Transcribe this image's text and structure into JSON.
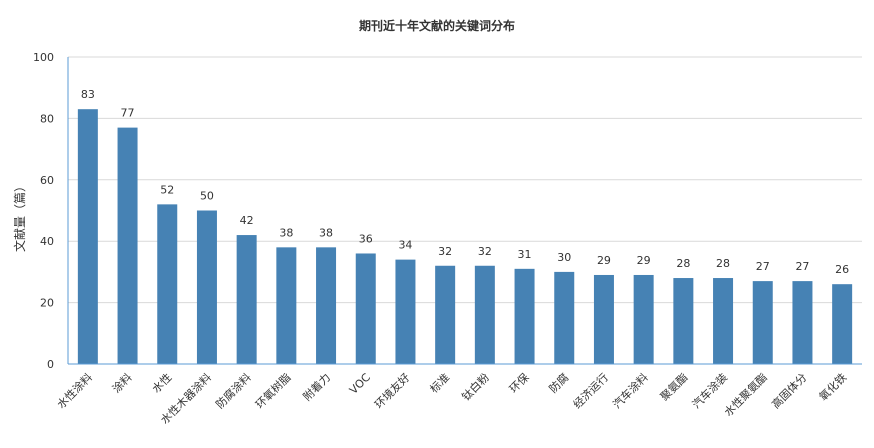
{
  "chart_data": {
    "type": "bar",
    "title": "期刊近十年文献的关键词分布",
    "xlabel": "",
    "ylabel": "文献量（篇）",
    "ylim": [
      0,
      100
    ],
    "yticks": [
      0,
      20,
      40,
      60,
      80,
      100
    ],
    "grid": true,
    "legend": "none",
    "colors": {
      "bar": "#4682b4",
      "grid": "#d9d9d9",
      "axis": "#5b9bd5"
    },
    "categories": [
      "水性涂料",
      "涂料",
      "水性",
      "水性木器涂料",
      "防腐涂料",
      "环氧树脂",
      "附着力",
      "VOC",
      "环境友好",
      "标准",
      "钛白粉",
      "环保",
      "防腐",
      "经济运行",
      "汽车涂料",
      "聚氨酯",
      "汽车涂装",
      "水性聚氨酯",
      "高固体分",
      "氧化铁"
    ],
    "values": [
      83,
      77,
      52,
      50,
      42,
      38,
      38,
      36,
      34,
      32,
      32,
      31,
      30,
      29,
      29,
      28,
      28,
      27,
      27,
      26
    ]
  }
}
